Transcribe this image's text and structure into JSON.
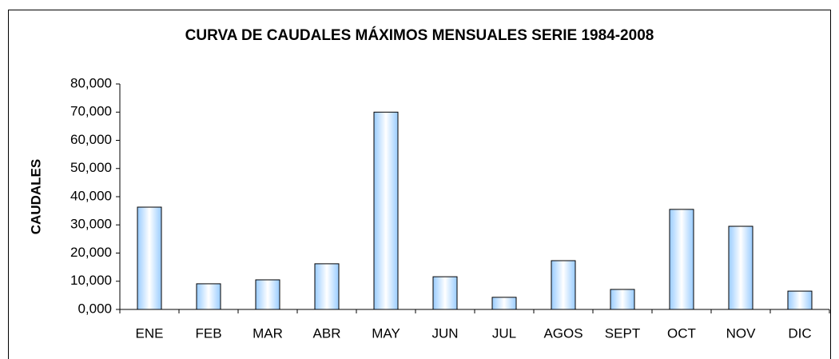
{
  "chart_data": {
    "type": "bar",
    "title": "CURVA DE CAUDALES MÁXIMOS MENSUALES SERIE 1984-2008",
    "y_label": "CAUDALES",
    "categories": [
      "ENE",
      "FEB",
      "MAR",
      "ABR",
      "MAY",
      "JUN",
      "JUL",
      "AGOS",
      "SEPT",
      "OCT",
      "NOV",
      "DIC"
    ],
    "values": [
      36.3,
      9.1,
      10.5,
      16.2,
      70.0,
      11.6,
      4.3,
      17.3,
      7.1,
      35.5,
      29.5,
      6.5
    ],
    "color": "#99ccff",
    "ylim": [
      0,
      80
    ],
    "yticks": [
      {
        "value": 0,
        "label": "0,000"
      },
      {
        "value": 10,
        "label": "10,000"
      },
      {
        "value": 20,
        "label": "20,000"
      },
      {
        "value": 30,
        "label": "30,000"
      },
      {
        "value": 40,
        "label": "40,000"
      },
      {
        "value": 50,
        "label": "50,000"
      },
      {
        "value": 60,
        "label": "60,000"
      },
      {
        "value": 70,
        "label": "70,000"
      },
      {
        "value": 80,
        "label": "80,000"
      }
    ],
    "grid": false
  }
}
